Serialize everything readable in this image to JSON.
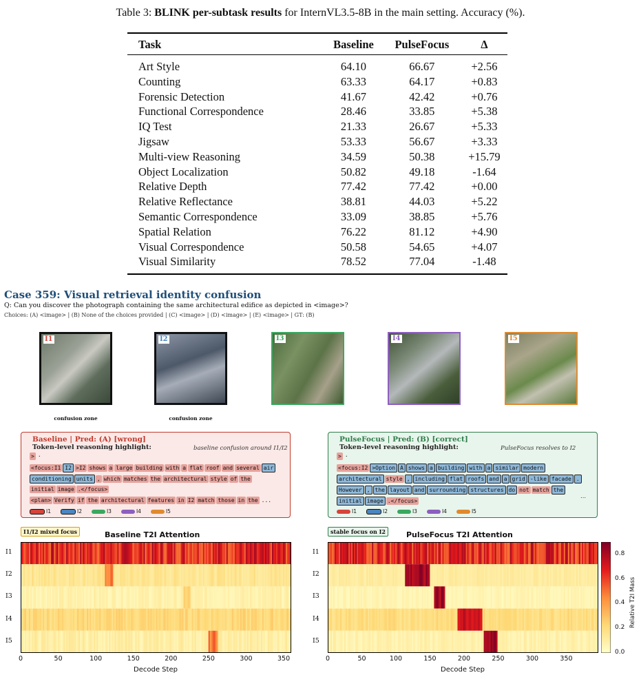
{
  "caption": {
    "prefix": "Table 3:",
    "bold": "BLINK per-subtask results",
    "suffix": "for InternVL3.5-8B in the main setting. Accuracy (%)."
  },
  "table": {
    "headers": [
      "Task",
      "Baseline",
      "PulseFocus",
      "Δ"
    ],
    "rows": [
      [
        "Art Style",
        "64.10",
        "66.67",
        "+2.56"
      ],
      [
        "Counting",
        "63.33",
        "64.17",
        "+0.83"
      ],
      [
        "Forensic Detection",
        "41.67",
        "42.42",
        "+0.76"
      ],
      [
        "Functional Correspondence",
        "28.46",
        "33.85",
        "+5.38"
      ],
      [
        "IQ Test",
        "21.33",
        "26.67",
        "+5.33"
      ],
      [
        "Jigsaw",
        "53.33",
        "56.67",
        "+3.33"
      ],
      [
        "Multi-view Reasoning",
        "34.59",
        "50.38",
        "+15.79"
      ],
      [
        "Object Localization",
        "50.82",
        "49.18",
        "-1.64"
      ],
      [
        "Relative Depth",
        "77.42",
        "77.42",
        "+0.00"
      ],
      [
        "Relative Reflectance",
        "38.81",
        "44.03",
        "+5.22"
      ],
      [
        "Semantic Correspondence",
        "33.09",
        "38.85",
        "+5.76"
      ],
      [
        "Spatial Relation",
        "76.22",
        "81.12",
        "+4.90"
      ],
      [
        "Visual Correspondence",
        "50.58",
        "54.65",
        "+4.07"
      ],
      [
        "Visual Similarity",
        "78.52",
        "77.04",
        "-1.48"
      ]
    ]
  },
  "case": {
    "title": "Case 359: Visual retrieval identity confusion",
    "question": "Q: Can you discover the photograph containing the same architectural edifice as depicted in <image>?",
    "choices": "Choices: (A) <image> | (B) None of the choices provided | (C) <image> | (D) <image> | (E) <image>   |   GT: (B)"
  },
  "images": [
    {
      "label": "I1",
      "color": "#d6443a",
      "note": "confusion zone"
    },
    {
      "label": "I2",
      "color": "#4a86c1",
      "note": "confusion zone"
    },
    {
      "label": "I3",
      "color": "#3aa860",
      "note": ""
    },
    {
      "label": "I4",
      "color": "#8d5fbf",
      "note": ""
    },
    {
      "label": "I5",
      "color": "#e08a2e",
      "note": ""
    }
  ],
  "baseline_panel": {
    "title": "Baseline  |  Pred: (A) [wrong]",
    "subtitle": "Token-level reasoning highlight:",
    "note": "baseline confusion around I1/I2",
    "color": "#c0392b",
    "lines": [
      [
        [
          "t1",
          ">"
        ],
        [
          "t0",
          "·"
        ]
      ],
      [
        [
          "t1",
          "<focus:I1"
        ],
        [
          "t2",
          "I2"
        ],
        [
          "t1",
          ">I2"
        ],
        [
          "t1",
          "shows"
        ],
        [
          "t1",
          "a"
        ],
        [
          "t1",
          "large"
        ],
        [
          "t1",
          "building"
        ],
        [
          "t1",
          "with"
        ],
        [
          "t1",
          "a"
        ],
        [
          "t1",
          "flat"
        ],
        [
          "t1",
          "roof"
        ],
        [
          "t1",
          "and"
        ],
        [
          "t1",
          "several"
        ],
        [
          "t2",
          "air"
        ]
      ],
      [
        [
          "t2",
          "conditioning"
        ],
        [
          "t2",
          "units"
        ],
        [
          "t1",
          ","
        ],
        [
          "t1",
          "which"
        ],
        [
          "t1",
          "matches"
        ],
        [
          "t1",
          "the"
        ],
        [
          "t1",
          "architectural"
        ],
        [
          "t1",
          "style"
        ],
        [
          "t1",
          "of"
        ],
        [
          "t1",
          "the"
        ]
      ],
      [
        [
          "t1",
          "initial"
        ],
        [
          "t1",
          "image"
        ],
        [
          "t1",
          ".</focus>"
        ]
      ],
      [
        [
          "t1",
          "<plan>"
        ],
        [
          "t1",
          "Verify"
        ],
        [
          "t1",
          "if"
        ],
        [
          "t1",
          "the"
        ],
        [
          "t1",
          "architectural"
        ],
        [
          "t1",
          "features"
        ],
        [
          "t1",
          "in"
        ],
        [
          "t1",
          "I2"
        ],
        [
          "t1",
          "match"
        ],
        [
          "t1",
          "those"
        ],
        [
          "t1",
          "in"
        ],
        [
          "t1",
          "the"
        ],
        [
          "t0",
          "..."
        ]
      ]
    ]
  },
  "pulse_panel": {
    "title": "PulseFocus  |  Pred: (B) [correct]",
    "subtitle": "Token-level reasoning highlight:",
    "note": "PulseFocus resolves to I2",
    "color": "#2e7d4a",
    "lines": [
      [
        [
          "t1",
          ">"
        ],
        [
          "t0",
          "·"
        ]
      ],
      [
        [
          "t1",
          "<focus:I2"
        ],
        [
          "t2",
          ">Option"
        ],
        [
          "t2",
          "A"
        ],
        [
          "t2",
          "shows"
        ],
        [
          "t2",
          "a"
        ],
        [
          "t2",
          "building"
        ],
        [
          "t2",
          "with"
        ],
        [
          "t2",
          "a"
        ],
        [
          "t2",
          "similar"
        ],
        [
          "t2",
          "modern"
        ]
      ],
      [
        [
          "t2",
          "architectural"
        ],
        [
          "t1",
          "style"
        ],
        [
          "t2",
          ","
        ],
        [
          "t2",
          "including"
        ],
        [
          "t2",
          "flat"
        ],
        [
          "t2",
          "roofs"
        ],
        [
          "t2",
          "and"
        ],
        [
          "t2",
          "a"
        ],
        [
          "t2",
          "grid"
        ],
        [
          "t2",
          "-like"
        ],
        [
          "t2",
          "facade"
        ],
        [
          "t2",
          "."
        ]
      ],
      [
        [
          "t2",
          "However"
        ],
        [
          "t2",
          ","
        ],
        [
          "t2",
          "the"
        ],
        [
          "t2",
          "layout"
        ],
        [
          "t2",
          "and"
        ],
        [
          "t2",
          "surrounding"
        ],
        [
          "t2",
          "structures"
        ],
        [
          "t2",
          "do"
        ],
        [
          "t1",
          "not"
        ],
        [
          "t1",
          "match"
        ],
        [
          "t2",
          "the"
        ]
      ],
      [
        [
          "t2",
          "initial"
        ],
        [
          "t2",
          "image"
        ],
        [
          "t1",
          ".</focus>"
        ]
      ]
    ],
    "ellipsis": "..."
  },
  "legend": [
    "I1",
    "I2",
    "I3",
    "I4",
    "I5"
  ],
  "baseline_heatmap": {
    "tag": "I1/I2 mixed focus",
    "title": "Baseline T2I Attention",
    "xlabel": "Decode Step",
    "ticks": [
      "0",
      "50",
      "100",
      "150",
      "200",
      "250",
      "300",
      "350"
    ]
  },
  "pulse_heatmap": {
    "tag": "stable focus on I2",
    "title": "PulseFocus T2I Attention",
    "xlabel": "Decode Step",
    "ticks": [
      "0",
      "50",
      "100",
      "150",
      "200",
      "250",
      "300",
      "350"
    ]
  },
  "rows": [
    "I1",
    "I2",
    "I3",
    "I4",
    "I5"
  ],
  "colorbar": {
    "label": "Relative T2I Mass",
    "ticks": [
      "0.8",
      "0.6",
      "0.4",
      "0.2",
      "0.0"
    ]
  }
}
